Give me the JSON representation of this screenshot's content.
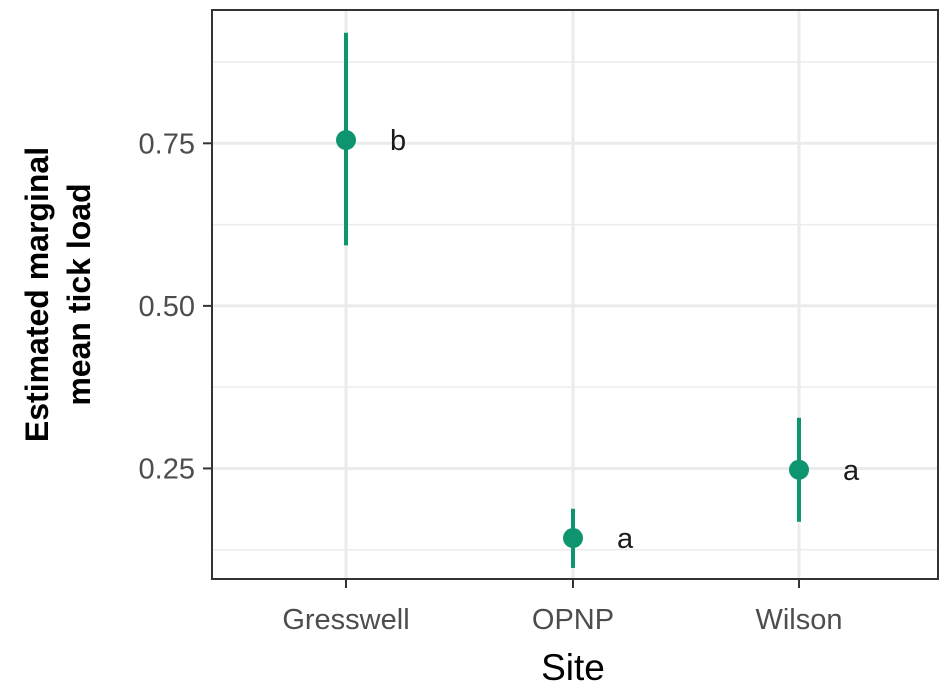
{
  "chart_data": {
    "type": "scatter",
    "subtype": "point-with-error-bars",
    "title": "",
    "xlabel": "Site",
    "ylabel_lines": [
      "Estimated marginal",
      "mean tick load"
    ],
    "categories": [
      "Gresswell",
      "OPNP",
      "Wilson"
    ],
    "series": [
      {
        "values": [
          0.755,
          0.143,
          0.248
        ],
        "lower": [
          0.593,
          0.097,
          0.168
        ],
        "upper": [
          0.92,
          0.188,
          0.328
        ],
        "group_labels": [
          "b",
          "a",
          "a"
        ],
        "color": "#0f9470"
      }
    ],
    "ylim": [
      0.08,
      0.955
    ],
    "yticks": [
      0.25,
      0.5,
      0.75
    ],
    "ytick_labels": [
      "0.25",
      "0.50",
      "0.75"
    ],
    "grid": true,
    "legend": "none",
    "colors": {
      "point": "#0f9470",
      "grid": "#ebebeb",
      "panel_border": "#333333"
    }
  }
}
